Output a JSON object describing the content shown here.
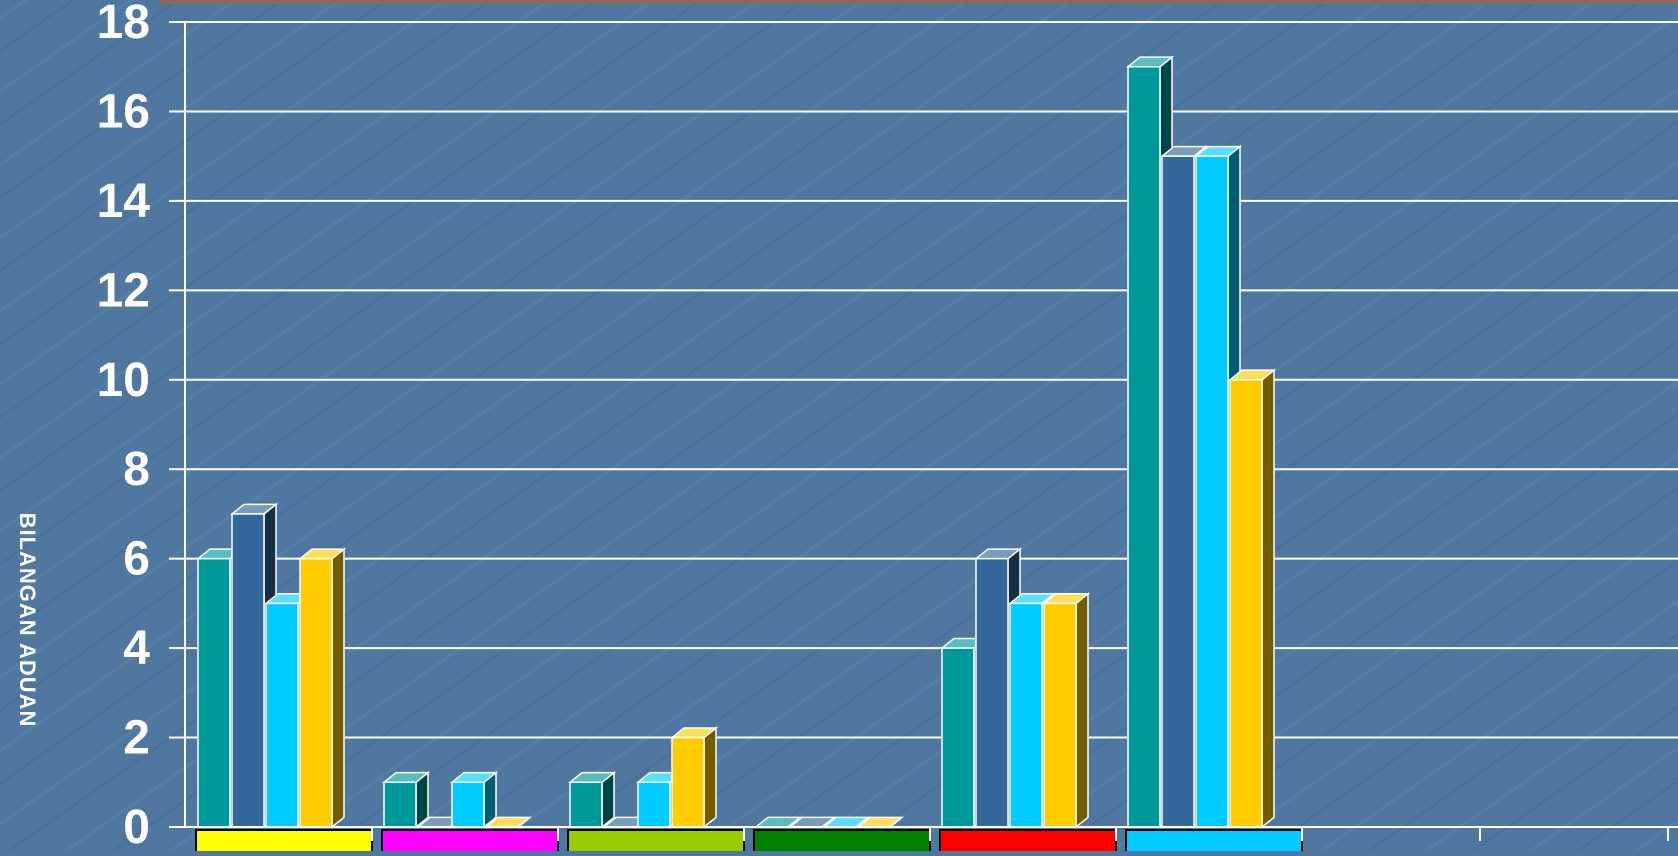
{
  "chart_data": {
    "type": "bar",
    "ylabel": "BILANGAN ADUAN",
    "ylim": [
      0,
      18
    ],
    "yticks": [
      0,
      2,
      4,
      6,
      8,
      10,
      12,
      14,
      16,
      18
    ],
    "grid": true,
    "categories": [
      "",
      "",
      "",
      "",
      "",
      ""
    ],
    "category_colors": [
      "#ffff00",
      "#ff00ff",
      "#99cc00",
      "#008000",
      "#ff0000",
      "#00ccff"
    ],
    "series": [
      {
        "color": "#009999",
        "values": [
          6,
          1,
          1,
          0,
          4,
          17
        ]
      },
      {
        "color": "#336699",
        "values": [
          7,
          0,
          0,
          0,
          6,
          15
        ]
      },
      {
        "color": "#00ccff",
        "values": [
          5,
          1,
          1,
          0,
          5,
          15
        ]
      },
      {
        "color": "#ffcc00",
        "values": [
          6,
          0,
          2,
          0,
          5,
          10
        ]
      }
    ]
  }
}
